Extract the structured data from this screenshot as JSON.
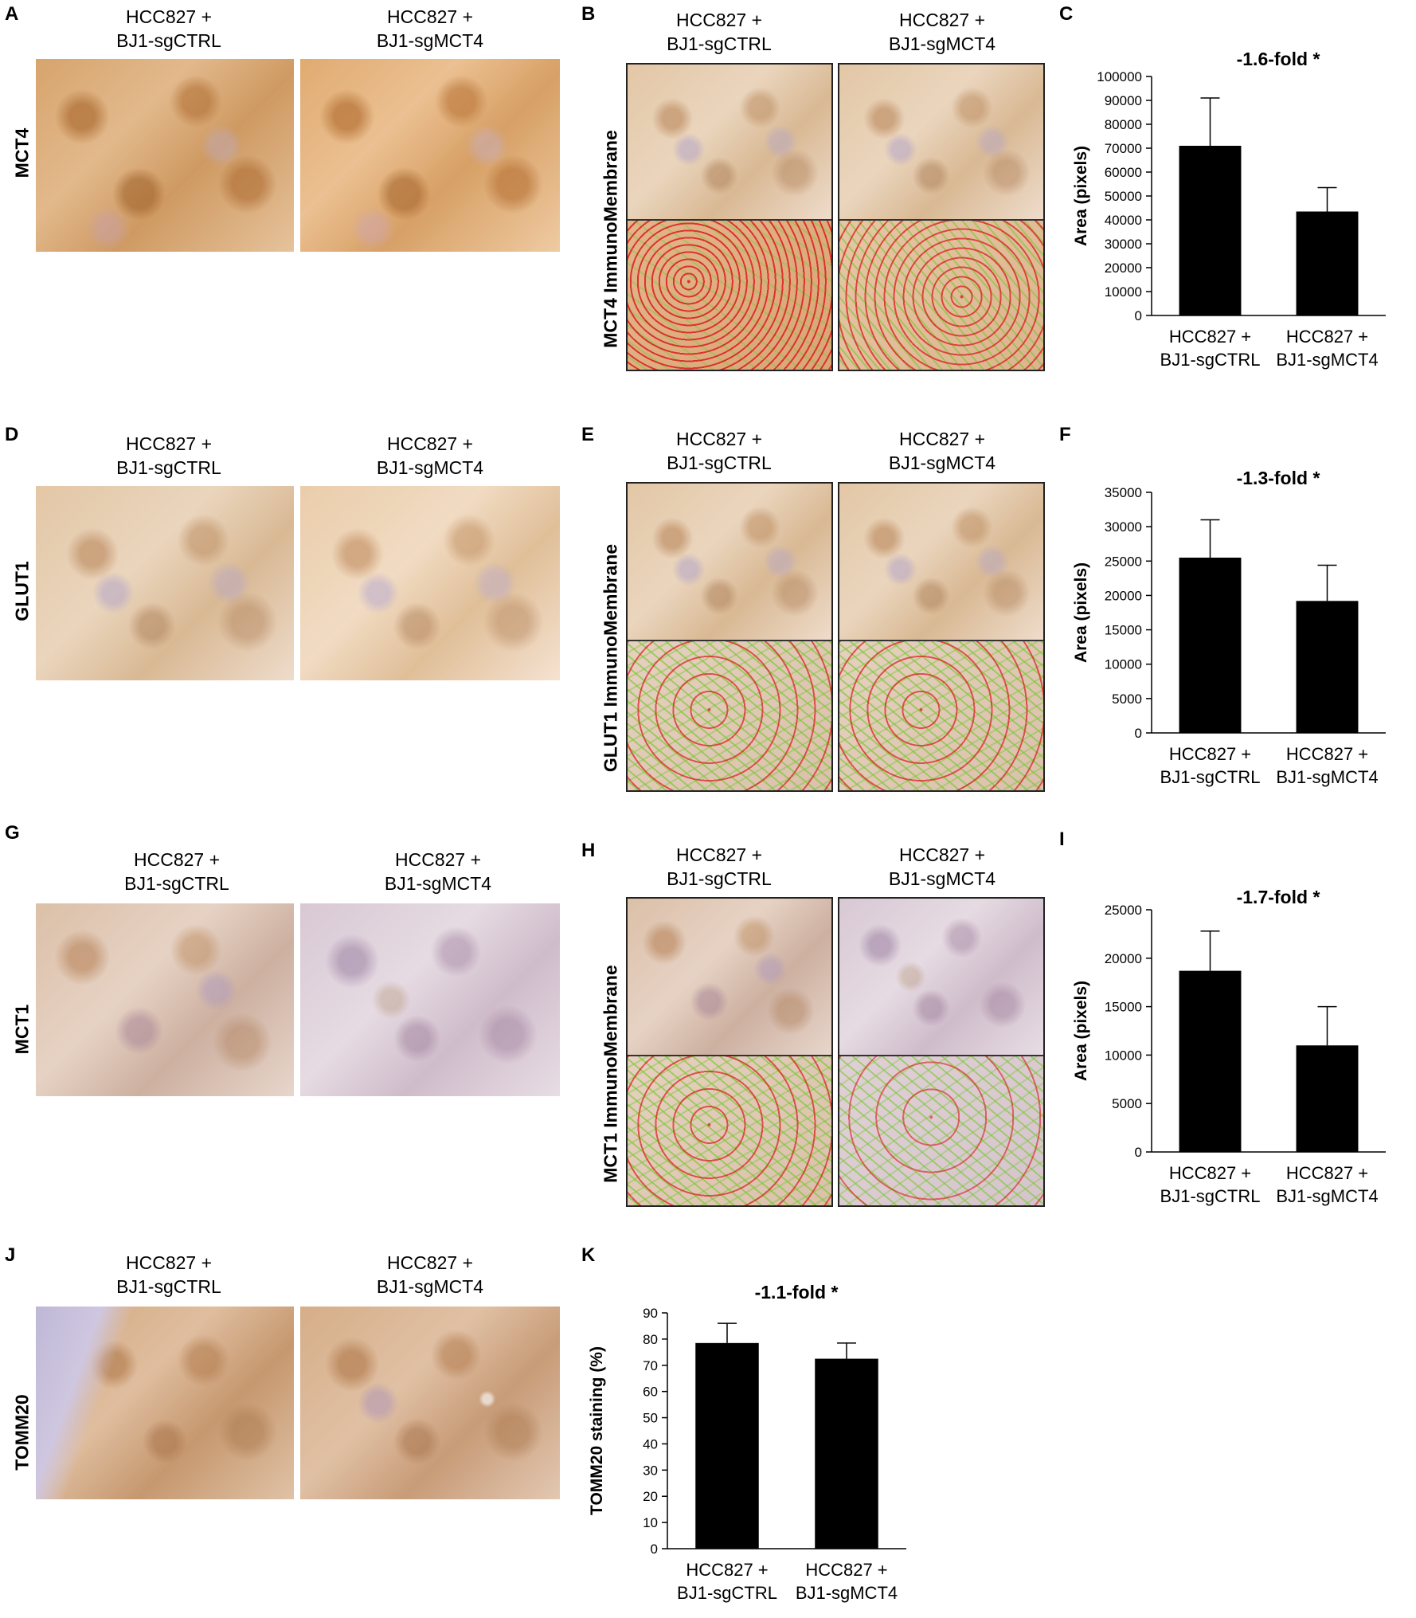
{
  "conditions": {
    "ctrl": [
      "HCC827 +",
      "BJ1-sgCTRL"
    ],
    "mct4": [
      "HCC827 +",
      "BJ1-sgMCT4"
    ]
  },
  "panels": {
    "A": {
      "letter": "A",
      "row_label": "MCT4"
    },
    "B": {
      "letter": "B",
      "row_label": "MCT4 ImmunoMembrane"
    },
    "C": {
      "letter": "C"
    },
    "D": {
      "letter": "D",
      "row_label": "GLUT1"
    },
    "E": {
      "letter": "E",
      "row_label": "GLUT1 ImmunoMembrane"
    },
    "F": {
      "letter": "F"
    },
    "G": {
      "letter": "G",
      "row_label": "MCT1"
    },
    "H": {
      "letter": "H",
      "row_label": "MCT1 ImmunoMembrane"
    },
    "I": {
      "letter": "I"
    },
    "J": {
      "letter": "J",
      "row_label": "TOMM20"
    },
    "K": {
      "letter": "K"
    }
  },
  "chart_data": [
    {
      "panel": "C",
      "type": "bar",
      "categories": [
        [
          "HCC827 +",
          "BJ1-sgCTRL"
        ],
        [
          "HCC827 +",
          "BJ1-sgMCT4"
        ]
      ],
      "values": [
        71000,
        43500
      ],
      "errors": [
        20000,
        10000
      ],
      "ylabel": "Area (pixels)",
      "ylim": [
        0,
        100000
      ],
      "yticks": [
        "0",
        "10000",
        "20000",
        "30000",
        "40000",
        "50000",
        "60000",
        "70000",
        "80000",
        "90000",
        "100000"
      ],
      "annotation": "-1.6-fold *",
      "bar_color": "#000000"
    },
    {
      "panel": "F",
      "type": "bar",
      "categories": [
        [
          "HCC827 +",
          "BJ1-sgCTRL"
        ],
        [
          "HCC827 +",
          "BJ1-sgMCT4"
        ]
      ],
      "values": [
        25500,
        19200
      ],
      "errors": [
        5500,
        5200
      ],
      "ylabel": "Area (pixels)",
      "ylim": [
        0,
        35000
      ],
      "yticks": [
        "0",
        "5000",
        "10000",
        "15000",
        "20000",
        "25000",
        "30000",
        "35000"
      ],
      "annotation": "-1.3-fold *",
      "bar_color": "#000000"
    },
    {
      "panel": "I",
      "type": "bar",
      "categories": [
        [
          "HCC827 +",
          "BJ1-sgCTRL"
        ],
        [
          "HCC827 +",
          "BJ1-sgMCT4"
        ]
      ],
      "values": [
        18700,
        11000
      ],
      "errors": [
        4100,
        4000
      ],
      "ylabel": "Area (pixels)",
      "ylim": [
        0,
        25000
      ],
      "yticks": [
        "0",
        "5000",
        "10000",
        "15000",
        "20000",
        "25000"
      ],
      "annotation": "-1.7-fold *",
      "bar_color": "#000000"
    },
    {
      "panel": "K",
      "type": "bar",
      "categories": [
        [
          "HCC827 +",
          "BJ1-sgCTRL"
        ],
        [
          "HCC827 +",
          "BJ1-sgMCT4"
        ]
      ],
      "values": [
        78.5,
        72.5
      ],
      "errors": [
        7.5,
        6.0
      ],
      "ylabel": "TOMM20 staining (%)",
      "ylim": [
        0,
        90
      ],
      "yticks": [
        "0",
        "10",
        "20",
        "30",
        "40",
        "50",
        "60",
        "70",
        "80",
        "90"
      ],
      "annotation": "-1.1-fold *",
      "bar_color": "#000000"
    }
  ]
}
